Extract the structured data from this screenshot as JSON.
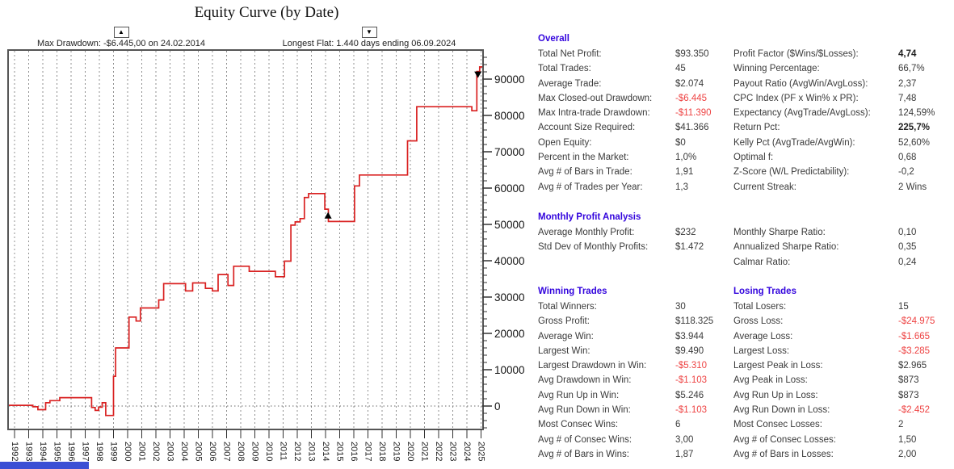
{
  "chart_data": {
    "type": "line",
    "subtype": "step-equity-curve",
    "title": "Equity Curve (by Date)",
    "xlabel": "",
    "ylabel": "",
    "x_ticks": [
      1992,
      1993,
      1994,
      1995,
      1996,
      1997,
      1998,
      1999,
      2000,
      2001,
      2002,
      2003,
      2004,
      2005,
      2006,
      2007,
      2008,
      2009,
      2010,
      2011,
      2012,
      2013,
      2014,
      2015,
      2016,
      2017,
      2018,
      2019,
      2020,
      2021,
      2022,
      2023,
      2024,
      2025
    ],
    "y_major_ticks": [
      0,
      10000,
      20000,
      30000,
      40000,
      50000,
      60000,
      70000,
      80000,
      90000
    ],
    "y_minor_step": 2000,
    "ylim": [
      -6400,
      98000
    ],
    "grid": "vertical-dashed",
    "zero_line": true,
    "legend_position": "top",
    "annotations": {
      "max_drawdown": "Max Drawdown: -$6.445,00 on 24.02.2014",
      "longest_flat": "Longest Flat: 1.440 days ending 06.09.2024"
    },
    "series": [
      {
        "name": "equity",
        "color": "#d92121",
        "steps": [
          [
            1992.0,
            200
          ],
          [
            1993.3,
            -200
          ],
          [
            1993.65,
            -1000
          ],
          [
            1994.2,
            900
          ],
          [
            1994.5,
            1500
          ],
          [
            1995.2,
            2300
          ],
          [
            1997.45,
            -400
          ],
          [
            1997.7,
            -1200
          ],
          [
            1997.95,
            -300
          ],
          [
            1998.2,
            900
          ],
          [
            1998.45,
            -2600
          ],
          [
            1999.0,
            8200
          ],
          [
            1999.15,
            16000
          ],
          [
            2000.1,
            24500
          ],
          [
            2000.6,
            23400
          ],
          [
            2000.9,
            27000
          ],
          [
            2002.2,
            29200
          ],
          [
            2002.55,
            33700
          ],
          [
            2004.1,
            31700
          ],
          [
            2004.6,
            33900
          ],
          [
            2005.5,
            32400
          ],
          [
            2006.0,
            31700
          ],
          [
            2006.4,
            36200
          ],
          [
            2007.1,
            33200
          ],
          [
            2007.5,
            38500
          ],
          [
            2008.6,
            37100
          ],
          [
            2010.45,
            35600
          ],
          [
            2011.1,
            39900
          ],
          [
            2011.55,
            49800
          ],
          [
            2011.85,
            50700
          ],
          [
            2012.2,
            51600
          ],
          [
            2012.5,
            57400
          ],
          [
            2012.8,
            58500
          ],
          [
            2013.95,
            54200
          ],
          [
            2014.2,
            50800
          ],
          [
            2016.05,
            60600
          ],
          [
            2016.4,
            63600
          ],
          [
            2019.8,
            73000
          ],
          [
            2020.45,
            82400
          ],
          [
            2024.35,
            81300
          ],
          [
            2024.7,
            92100
          ],
          [
            2024.9,
            93350
          ]
        ]
      }
    ],
    "markers": [
      {
        "shape": "triangle-up",
        "x": 2014.18,
        "y": 52400,
        "meaning": "max drawdown point"
      },
      {
        "shape": "triangle-down",
        "x": 2024.78,
        "y": 91300,
        "meaning": "longest flat end point"
      }
    ]
  },
  "stats": {
    "overall": {
      "title": "Overall",
      "left": [
        {
          "label": "Total Net Profit:",
          "value": "$93.350"
        },
        {
          "label": "Total Trades:",
          "value": "45"
        },
        {
          "label": "Average Trade:",
          "value": "$2.074"
        },
        {
          "label": "Max Closed-out Drawdown:",
          "value": "-$6.445",
          "red": true
        },
        {
          "label": "Max Intra-trade Drawdown:",
          "value": "-$11.390",
          "red": true
        },
        {
          "label": "Account Size Required:",
          "value": "$41.366"
        },
        {
          "label": "Open Equity:",
          "value": "$0"
        },
        {
          "label": "Percent in the Market:",
          "value": "1,0%"
        },
        {
          "label": "Avg # of Bars in Trade:",
          "value": "1,91"
        },
        {
          "label": "Avg # of Trades per Year:",
          "value": "1,3"
        }
      ],
      "right": [
        {
          "label": "Profit Factor ($Wins/$Losses):",
          "value": "4,74",
          "bold": true
        },
        {
          "label": "Winning Percentage:",
          "value": "66,7%"
        },
        {
          "label": "Payout Ratio (AvgWin/AvgLoss):",
          "value": "2,37"
        },
        {
          "label": "CPC Index (PF x Win% x PR):",
          "value": "7,48"
        },
        {
          "label": "Expectancy (AvgTrade/AvgLoss):",
          "value": "124,59%"
        },
        {
          "label": "Return Pct:",
          "value": "225,7%",
          "bold": true
        },
        {
          "label": "Kelly Pct (AvgTrade/AvgWin):",
          "value": "52,60%"
        },
        {
          "label": "Optimal f:",
          "value": "0,68"
        },
        {
          "label": "Z-Score (W/L Predictability):",
          "value": "-0,2"
        },
        {
          "label": "Current Streak:",
          "value": "2 Wins"
        }
      ]
    },
    "monthly": {
      "title": "Monthly Profit Analysis",
      "left": [
        {
          "label": "Average Monthly Profit:",
          "value": "$232"
        },
        {
          "label": "Std Dev of Monthly Profits:",
          "value": "$1.472"
        }
      ],
      "right": [
        {
          "label": "Monthly Sharpe Ratio:",
          "value": "0,10"
        },
        {
          "label": "Annualized Sharpe Ratio:",
          "value": "0,35"
        },
        {
          "label": "Calmar Ratio:",
          "value": "0,24"
        }
      ]
    },
    "winning": {
      "title": "Winning Trades",
      "rows": [
        {
          "label": "Total Winners:",
          "value": "30"
        },
        {
          "label": "Gross Profit:",
          "value": "$118.325"
        },
        {
          "label": "Average Win:",
          "value": "$3.944"
        },
        {
          "label": "Largest Win:",
          "value": "$9.490"
        },
        {
          "label": "Largest Drawdown in Win:",
          "value": "-$5.310",
          "red": true
        },
        {
          "label": "Avg Drawdown in Win:",
          "value": "-$1.103",
          "red": true
        },
        {
          "label": "Avg Run Up in Win:",
          "value": "$5.246"
        },
        {
          "label": "Avg Run Down in Win:",
          "value": "-$1.103",
          "red": true
        },
        {
          "label": "Most Consec Wins:",
          "value": "6"
        },
        {
          "label": "Avg # of Consec Wins:",
          "value": "3,00"
        },
        {
          "label": "Avg # of Bars in Wins:",
          "value": "1,87"
        }
      ]
    },
    "losing": {
      "title": "Losing Trades",
      "rows": [
        {
          "label": "Total Losers:",
          "value": "15"
        },
        {
          "label": "Gross Loss:",
          "value": "-$24.975",
          "red": true
        },
        {
          "label": "Average Loss:",
          "value": "-$1.665",
          "red": true
        },
        {
          "label": "Largest Loss:",
          "value": "-$3.285",
          "red": true
        },
        {
          "label": "Largest Peak in Loss:",
          "value": "$2.965"
        },
        {
          "label": "Avg Peak in Loss:",
          "value": "$873"
        },
        {
          "label": "Avg Run Up in Loss:",
          "value": "$873"
        },
        {
          "label": "Avg Run Down in Loss:",
          "value": "-$2.452",
          "red": true
        },
        {
          "label": "Most Consec Losses:",
          "value": "2"
        },
        {
          "label": "Avg # of Consec Losses:",
          "value": "1,50"
        },
        {
          "label": "Avg # of Bars in Losses:",
          "value": "2,00"
        }
      ]
    }
  },
  "colors": {
    "section_title": "#3305dd",
    "stat_text": "#3a3a3a",
    "negative_value": "#ee4343",
    "curve": "#d92121",
    "grid": "#909090",
    "border": "#555555",
    "blue_strip": "#3b4fd4"
  }
}
